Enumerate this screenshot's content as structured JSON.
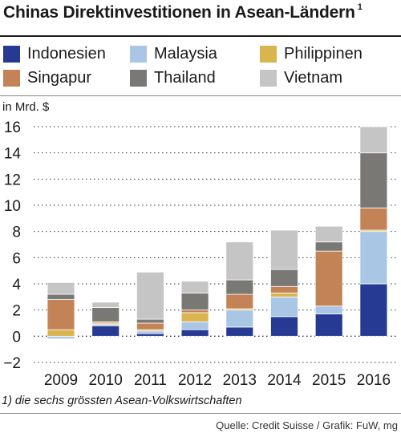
{
  "title": "Chinas Direktinvestitionen in Asean-Ländern",
  "title_note": "1",
  "legend": [
    {
      "name": "Indonesien",
      "color": "#263a93"
    },
    {
      "name": "Malaysia",
      "color": "#a9c7e4"
    },
    {
      "name": "Philippinen",
      "color": "#d9b44f"
    },
    {
      "name": "Singapur",
      "color": "#c48357"
    },
    {
      "name": "Thailand",
      "color": "#7a7875"
    },
    {
      "name": "Vietnam",
      "color": "#c5c5c5"
    }
  ],
  "footnote": "1) die sechs grössten Asean-Volkswirtschaften",
  "source": "Quelle: Credit Suisse / Grafik: FuW, mg",
  "chart_data": {
    "type": "bar",
    "stacked": true,
    "ylabel": "in Mrd. $",
    "ylim": [
      -2,
      16
    ],
    "yticks": [
      -2,
      0,
      2,
      4,
      6,
      8,
      10,
      12,
      14,
      16
    ],
    "grid": "horizontal dotted",
    "legend_position": "top",
    "categories": [
      "2009",
      "2010",
      "2011",
      "2012",
      "2013",
      "2014",
      "2015",
      "2016"
    ],
    "series": [
      {
        "name": "Indonesien",
        "color": "#263a93",
        "values": [
          0.0,
          0.8,
          0.2,
          0.5,
          0.7,
          1.5,
          1.7,
          4.0
        ]
      },
      {
        "name": "Malaysia",
        "color": "#a9c7e4",
        "values": [
          -0.2,
          0.1,
          0.2,
          0.6,
          1.3,
          1.5,
          0.6,
          4.0
        ]
      },
      {
        "name": "Philippinen",
        "color": "#d9b44f",
        "values": [
          0.5,
          0.1,
          0.1,
          0.7,
          0.1,
          0.3,
          0.0,
          0.1
        ]
      },
      {
        "name": "Singapur",
        "color": "#c48357",
        "values": [
          2.3,
          0.1,
          0.5,
          0.2,
          1.1,
          0.5,
          4.2,
          1.7
        ]
      },
      {
        "name": "Thailand",
        "color": "#7a7875",
        "values": [
          0.4,
          1.1,
          0.3,
          1.3,
          1.1,
          1.3,
          0.7,
          4.2
        ]
      },
      {
        "name": "Vietnam",
        "color": "#c5c5c5",
        "values": [
          0.9,
          0.4,
          3.6,
          0.9,
          2.9,
          3.0,
          1.2,
          2.0
        ]
      }
    ]
  }
}
